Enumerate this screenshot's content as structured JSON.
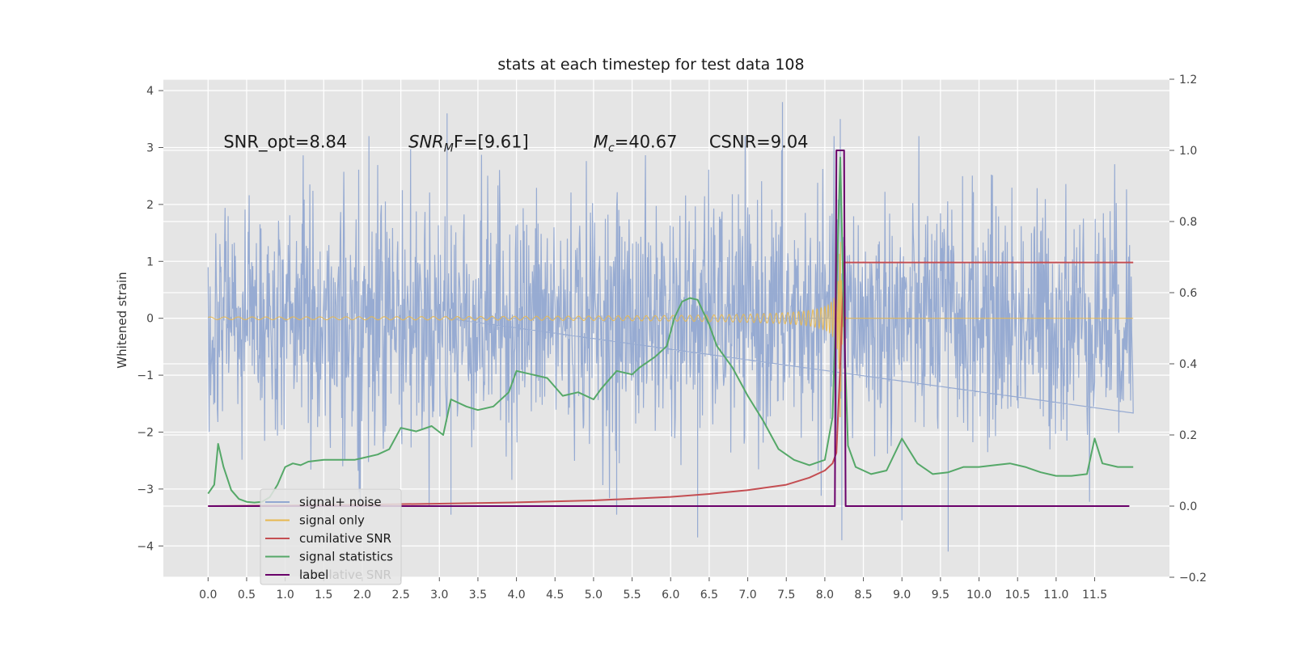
{
  "chart_data": {
    "type": "line",
    "title": "stats at each timestep for test data 108",
    "ylabel": "Whitened strain",
    "xlim": [
      -0.58,
      12.47
    ],
    "ylim": [
      -4.55,
      4.2
    ],
    "y2lim": [
      -0.2,
      1.2
    ],
    "xticks": [
      0.0,
      0.5,
      1.0,
      1.5,
      2.0,
      2.5,
      3.0,
      3.5,
      4.0,
      4.5,
      5.0,
      5.5,
      6.0,
      6.5,
      7.0,
      7.5,
      8.0,
      8.5,
      9.0,
      9.5,
      10.0,
      10.5,
      11.0,
      11.5
    ],
    "xtick_labels": [
      "0.0",
      "0.5",
      "1.0",
      "1.5",
      "2.0",
      "2.5",
      "3.0",
      "3.5",
      "4.0",
      "4.5",
      "5.0",
      "5.5",
      "6.0",
      "6.5",
      "7.0",
      "7.5",
      "8.0",
      "8.5",
      "9.0",
      "9.5",
      "10.0",
      "10.5",
      "11.0",
      "11.5"
    ],
    "yticks": [
      4,
      3,
      2,
      1,
      0,
      -1,
      -2,
      -3,
      -4
    ],
    "ytick_labels": [
      "4",
      "3",
      "2",
      "1",
      "0",
      "−1",
      "−2",
      "−3",
      "−4"
    ],
    "y2ticks": [
      1.2,
      1.0,
      0.8,
      0.6,
      0.4,
      0.2,
      0.0,
      -0.2
    ],
    "y2tick_labels": [
      "1.2",
      "1.0",
      "0.8",
      "0.6",
      "0.4",
      "0.2",
      "0.0",
      "−0.2"
    ],
    "annotations": [
      {
        "name": "snr-opt",
        "text": "SNR_opt=8.84",
        "x": 0.2,
        "y": 3.0
      },
      {
        "name": "snr-mf",
        "text": "SNR_MF=[9.61]",
        "main": "SNR",
        "sub": "M",
        "rest": "F=[9.61]",
        "x": 2.6,
        "y": 3.0
      },
      {
        "name": "chirp-mass",
        "text": "M_c=40.67",
        "main": "M",
        "sub": "c",
        "rest": "=40.67",
        "x": 5.0,
        "y": 3.0
      },
      {
        "name": "csnr",
        "text": "CSNR=9.04",
        "x": 6.5,
        "y": 3.0
      }
    ],
    "series": [
      {
        "name": "signal+ noise",
        "axis": "left",
        "color": "#92a8d1",
        "style": "noise",
        "x_range": [
          0.0,
          12.0
        ],
        "approx_envelope": [
          -2.4,
          2.6
        ],
        "notable_points": [
          [
            3.1,
            3.6
          ],
          [
            3.15,
            -3.45
          ],
          [
            5.3,
            -3.45
          ],
          [
            6.35,
            -3.85
          ],
          [
            7.45,
            3.8
          ],
          [
            8.22,
            -3.9
          ],
          [
            9.6,
            -4.1
          ],
          [
            9.0,
            -3.55
          ],
          [
            8.2,
            3.5
          ]
        ]
      },
      {
        "name": "signal only",
        "axis": "left",
        "color": "#e8b84f",
        "style": "chirp",
        "x_range": [
          0.0,
          12.0
        ],
        "merger_x": 8.2,
        "peak_amplitude": 2.2
      },
      {
        "name": "cumilative SNR",
        "axis": "right",
        "color": "#c44e52",
        "x": [
          0.0,
          1.0,
          2.0,
          3.0,
          4.0,
          5.0,
          6.0,
          6.5,
          7.0,
          7.5,
          7.8,
          8.0,
          8.1,
          8.15,
          8.2,
          8.25,
          12.0
        ],
        "values": [
          0.0,
          0.0019,
          0.004,
          0.0068,
          0.0105,
          0.016,
          0.026,
          0.034,
          0.045,
          0.06,
          0.08,
          0.1,
          0.12,
          0.15,
          0.4,
          0.685,
          0.685
        ]
      },
      {
        "name": "signal statistics",
        "axis": "right",
        "color": "#55a868",
        "x": [
          0.0,
          0.08,
          0.13,
          0.2,
          0.3,
          0.4,
          0.5,
          0.6,
          0.7,
          0.8,
          0.9,
          1.0,
          1.1,
          1.2,
          1.3,
          1.5,
          1.7,
          1.9,
          2.0,
          2.2,
          2.35,
          2.5,
          2.7,
          2.9,
          3.05,
          3.15,
          3.35,
          3.5,
          3.7,
          3.9,
          4.0,
          4.2,
          4.4,
          4.6,
          4.8,
          5.0,
          5.1,
          5.3,
          5.5,
          5.6,
          5.8,
          5.95,
          6.05,
          6.15,
          6.25,
          6.35,
          6.5,
          6.6,
          6.8,
          7.0,
          7.2,
          7.4,
          7.6,
          7.8,
          8.0,
          8.1,
          8.15,
          8.2,
          8.25,
          8.3,
          8.4,
          8.6,
          8.8,
          9.0,
          9.2,
          9.4,
          9.6,
          9.8,
          10.0,
          10.2,
          10.4,
          10.6,
          10.8,
          11.0,
          11.2,
          11.4,
          11.5,
          11.6,
          11.8,
          12.0
        ],
        "values": [
          0.035,
          0.06,
          0.175,
          0.11,
          0.045,
          0.02,
          0.012,
          0.01,
          0.012,
          0.025,
          0.06,
          0.11,
          0.12,
          0.115,
          0.125,
          0.13,
          0.13,
          0.13,
          0.135,
          0.145,
          0.16,
          0.22,
          0.21,
          0.225,
          0.2,
          0.3,
          0.28,
          0.27,
          0.28,
          0.32,
          0.38,
          0.37,
          0.36,
          0.31,
          0.32,
          0.3,
          0.33,
          0.38,
          0.37,
          0.39,
          0.42,
          0.45,
          0.53,
          0.575,
          0.585,
          0.58,
          0.51,
          0.45,
          0.39,
          0.31,
          0.24,
          0.16,
          0.13,
          0.115,
          0.13,
          0.25,
          0.6,
          0.98,
          0.5,
          0.17,
          0.11,
          0.09,
          0.1,
          0.19,
          0.12,
          0.09,
          0.095,
          0.11,
          0.11,
          0.115,
          0.12,
          0.11,
          0.095,
          0.085,
          0.085,
          0.09,
          0.19,
          0.12,
          0.11,
          0.11
        ]
      },
      {
        "name": "label",
        "axis": "right",
        "color": "#6a006a",
        "x": [
          0.0,
          8.13,
          8.15,
          8.25,
          8.27,
          11.95
        ],
        "values": [
          0.0,
          0.0,
          1.0,
          1.0,
          0.0,
          0.0
        ]
      }
    ],
    "legend": {
      "position": "lower-left",
      "entries": [
        {
          "label": "signal+ noise",
          "color": "#92a8d1"
        },
        {
          "label": "signal only",
          "color": "#e8b84f"
        },
        {
          "label": "cumilative SNR",
          "color": "#c44e52"
        },
        {
          "label": "signal statistics",
          "color": "#55a868"
        },
        {
          "label": "label",
          "color": "#6a006a"
        }
      ],
      "ghost_text": "cumilative SNR"
    }
  }
}
